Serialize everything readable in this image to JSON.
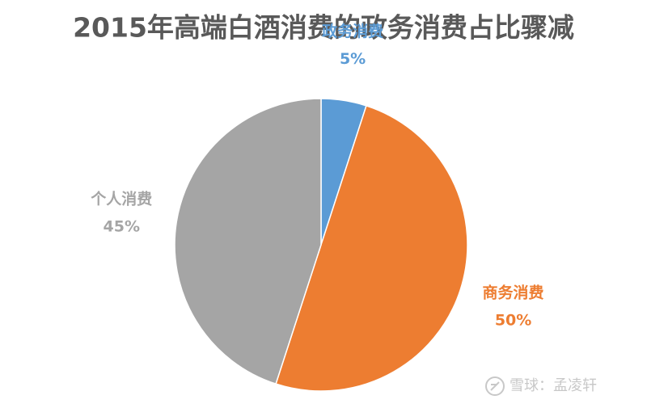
{
  "chart_data": {
    "type": "pie",
    "title": "2015年高端白酒消费的政务消费占比骤减",
    "categories": [
      "政务消费",
      "商务消费",
      "个人消费"
    ],
    "values": [
      5,
      50,
      45
    ],
    "value_labels": [
      "5%",
      "50%",
      "45%"
    ],
    "colors": [
      "#5b9bd5",
      "#ed7d31",
      "#a5a5a5"
    ],
    "watermark": "雪球：孟凌轩"
  }
}
